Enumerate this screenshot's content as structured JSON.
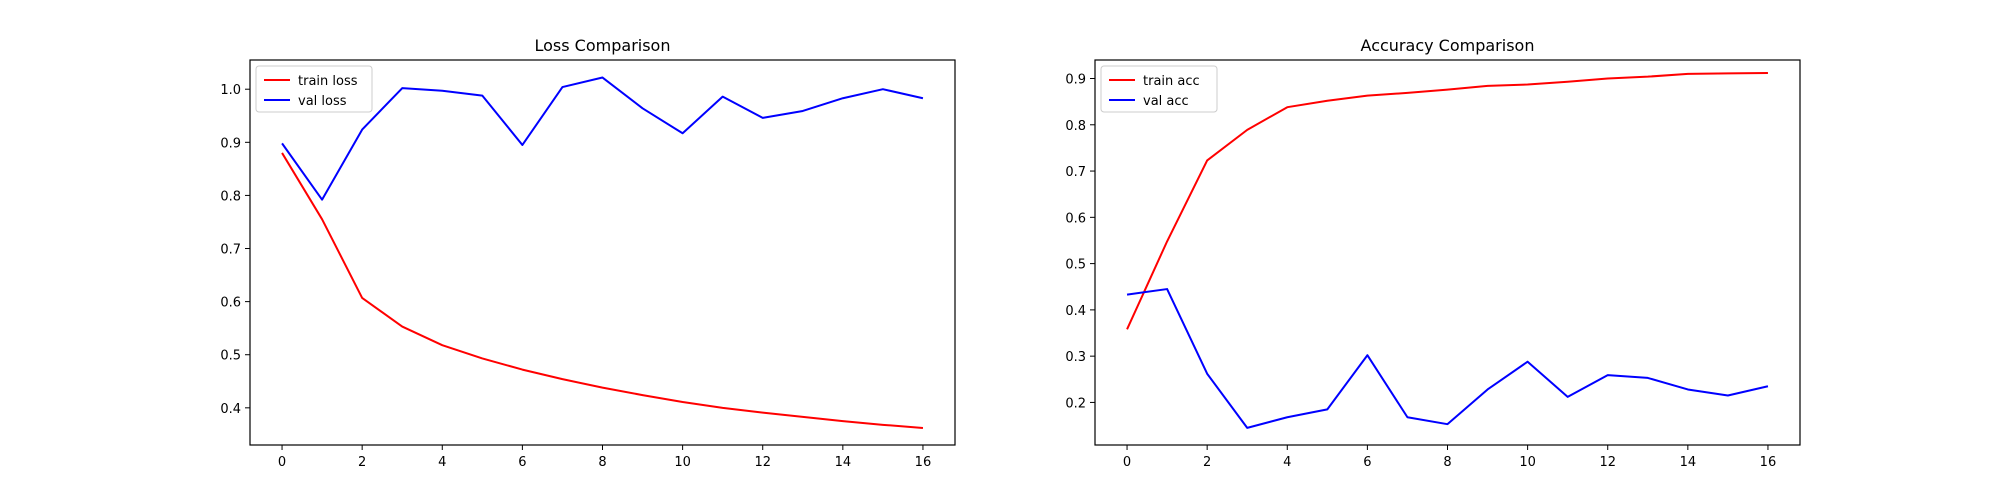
{
  "chart_data": [
    {
      "type": "line",
      "title": "Loss Comparison",
      "xlabel": "",
      "ylabel": "",
      "x": [
        0,
        1,
        2,
        3,
        4,
        5,
        6,
        7,
        8,
        9,
        10,
        11,
        12,
        13,
        14,
        15,
        16
      ],
      "xlim": [
        -0.8,
        16.8
      ],
      "ylim": [
        0.33,
        1.055
      ],
      "xticks": [
        0,
        2,
        4,
        6,
        8,
        10,
        12,
        14,
        16
      ],
      "yticks": [
        0.4,
        0.5,
        0.6,
        0.7,
        0.8,
        0.9,
        1.0
      ],
      "xtick_labels": [
        "0",
        "2",
        "4",
        "6",
        "8",
        "10",
        "12",
        "14",
        "16"
      ],
      "ytick_labels": [
        "0.4",
        "0.5",
        "0.6",
        "0.7",
        "0.8",
        "0.9",
        "1.0"
      ],
      "grid": false,
      "legend": "top-left",
      "series": [
        {
          "name": "train loss",
          "color": "#ff0000",
          "values": [
            0.88,
            0.755,
            0.607,
            0.553,
            0.518,
            0.493,
            0.472,
            0.454,
            0.438,
            0.424,
            0.411,
            0.4,
            0.391,
            0.383,
            0.375,
            0.368,
            0.362
          ]
        },
        {
          "name": "val loss",
          "color": "#0000ff",
          "values": [
            0.898,
            0.792,
            0.924,
            1.002,
            0.997,
            0.988,
            0.895,
            1.004,
            1.022,
            0.964,
            0.917,
            0.986,
            0.946,
            0.959,
            0.983,
            1.0,
            0.983
          ]
        }
      ]
    },
    {
      "type": "line",
      "title": "Accuracy Comparison",
      "xlabel": "",
      "ylabel": "",
      "x": [
        0,
        1,
        2,
        3,
        4,
        5,
        6,
        7,
        8,
        9,
        10,
        11,
        12,
        13,
        14,
        15,
        16
      ],
      "xlim": [
        -0.8,
        16.8
      ],
      "ylim": [
        0.108,
        0.94
      ],
      "xticks": [
        0,
        2,
        4,
        6,
        8,
        10,
        12,
        14,
        16
      ],
      "yticks": [
        0.2,
        0.3,
        0.4,
        0.5,
        0.6,
        0.7,
        0.8,
        0.9
      ],
      "xtick_labels": [
        "0",
        "2",
        "4",
        "6",
        "8",
        "10",
        "12",
        "14",
        "16"
      ],
      "ytick_labels": [
        "0.2",
        "0.3",
        "0.4",
        "0.5",
        "0.6",
        "0.7",
        "0.8",
        "0.9"
      ],
      "grid": false,
      "legend": "top-left",
      "series": [
        {
          "name": "train acc",
          "color": "#ff0000",
          "values": [
            0.358,
            0.548,
            0.723,
            0.789,
            0.838,
            0.852,
            0.863,
            0.869,
            0.876,
            0.884,
            0.887,
            0.893,
            0.9,
            0.904,
            0.91,
            0.911,
            0.912
          ]
        },
        {
          "name": "val acc",
          "color": "#0000ff",
          "values": [
            0.433,
            0.445,
            0.262,
            0.145,
            0.168,
            0.185,
            0.302,
            0.168,
            0.153,
            0.228,
            0.288,
            0.212,
            0.259,
            0.253,
            0.228,
            0.215,
            0.235
          ]
        }
      ]
    }
  ]
}
